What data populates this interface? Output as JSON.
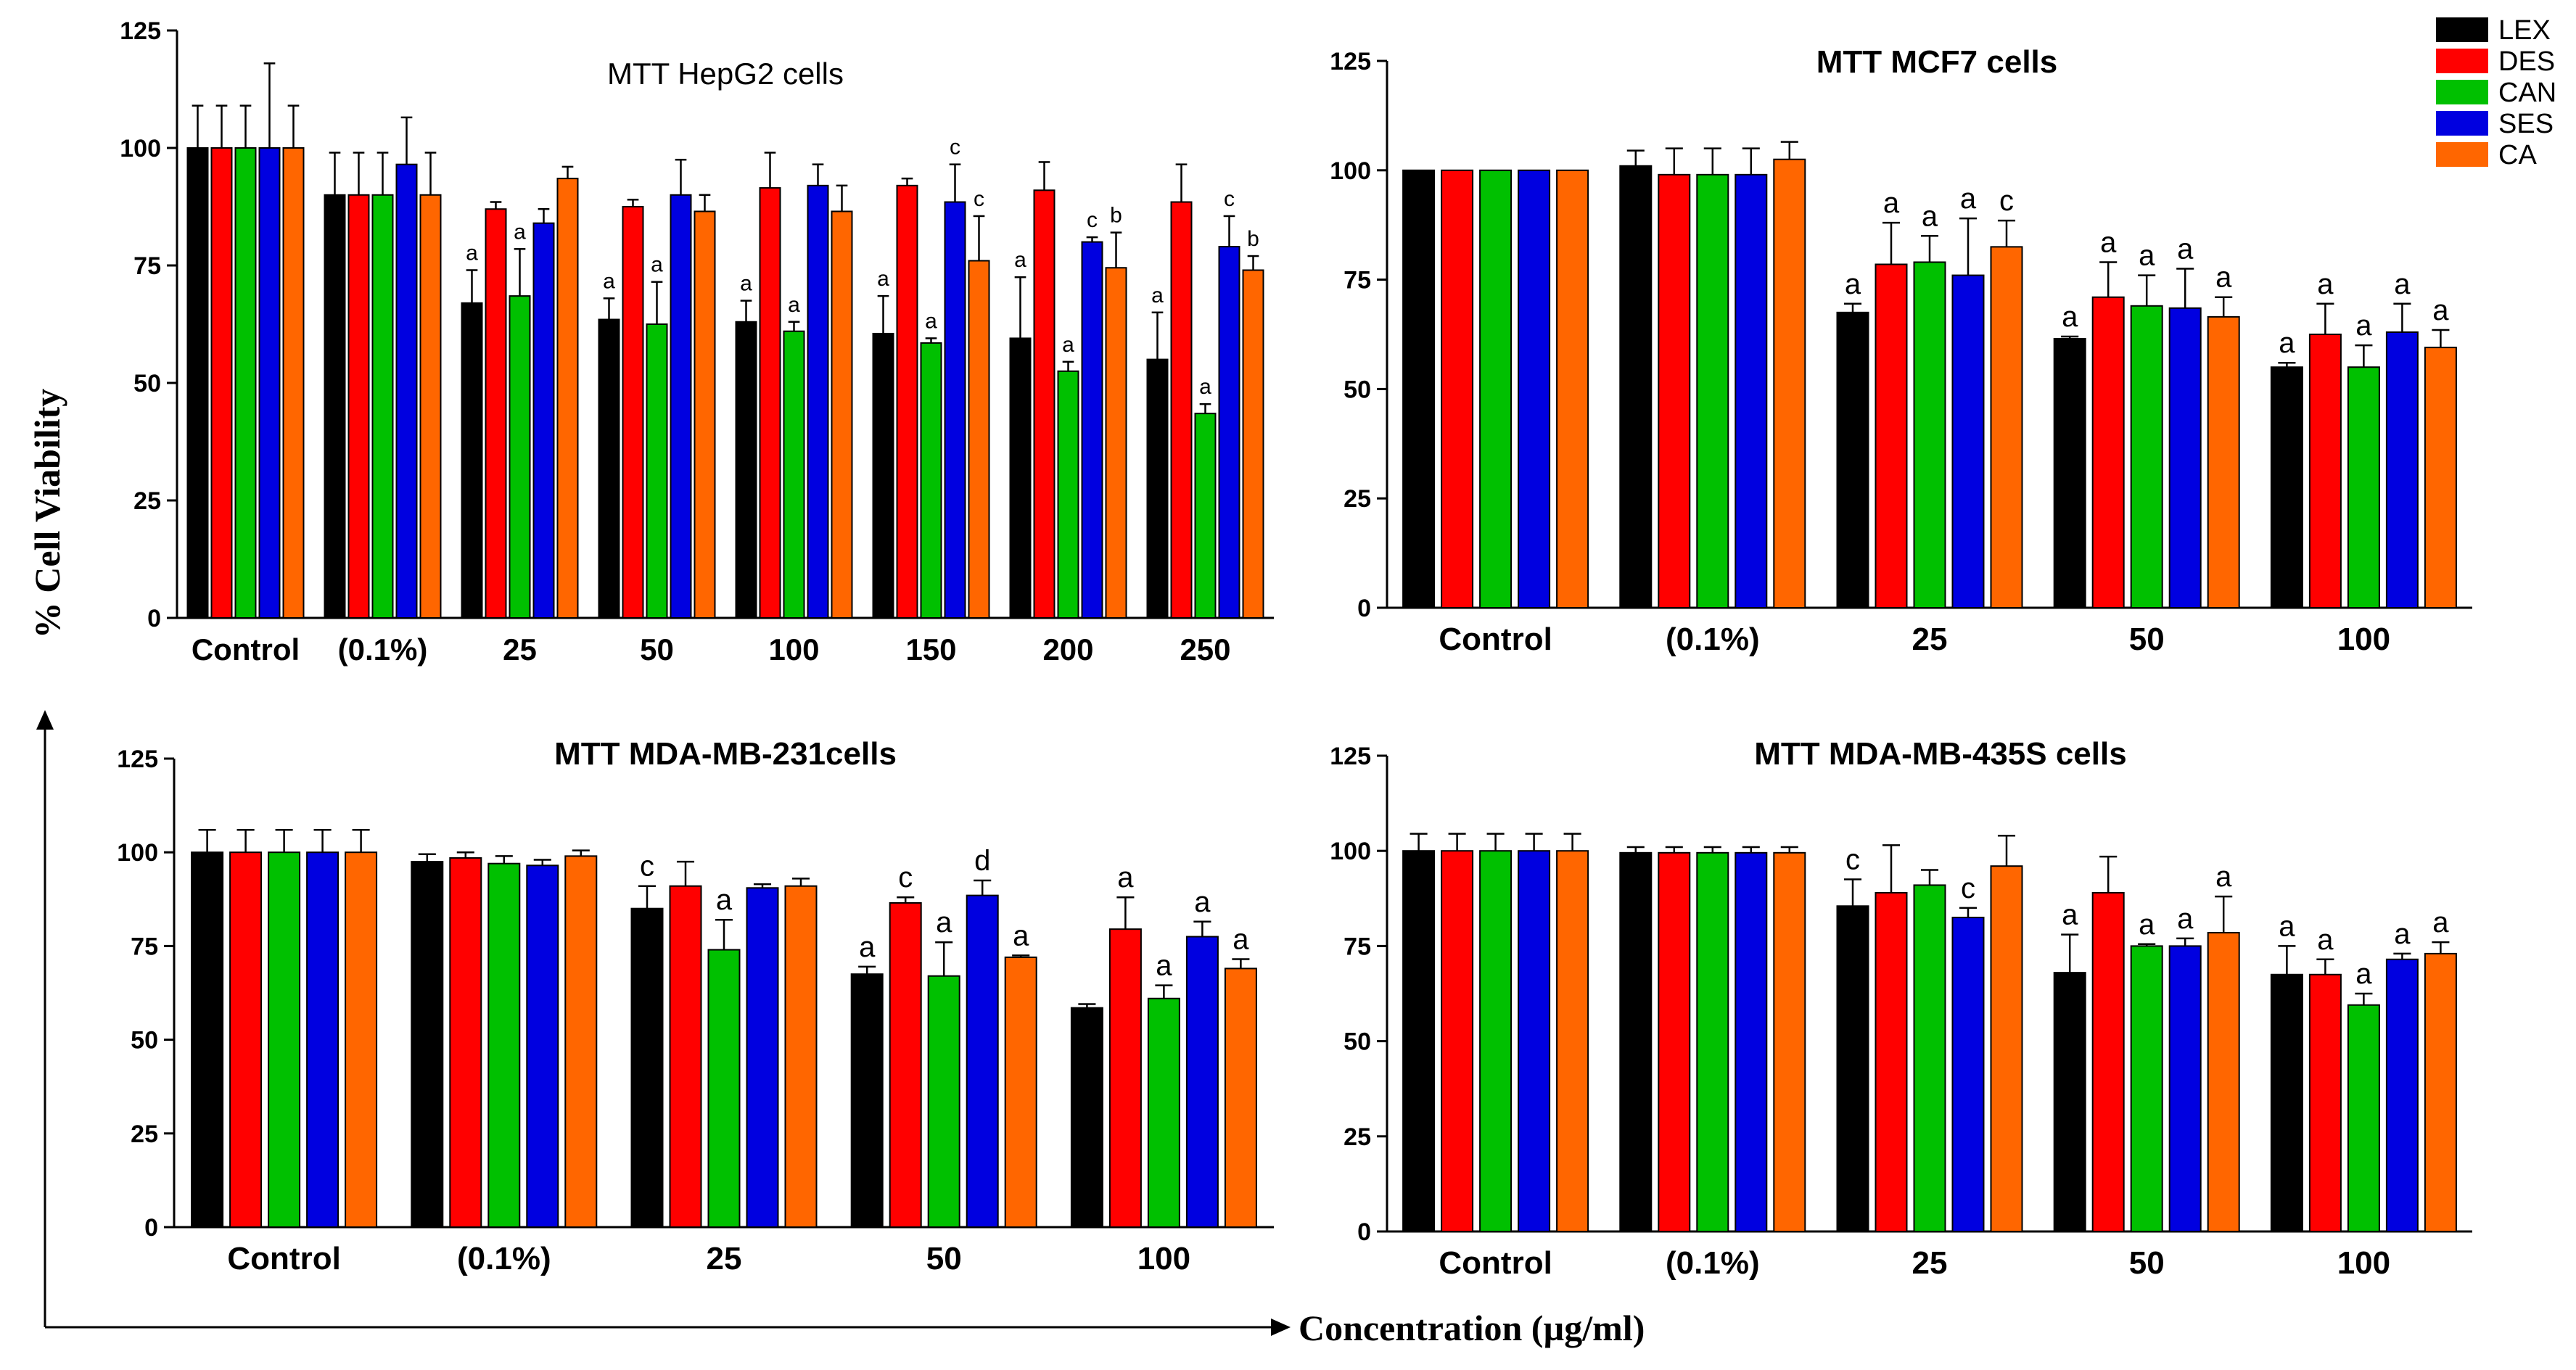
{
  "legend": [
    {
      "name": "LEX",
      "color": "#000000"
    },
    {
      "name": "DES",
      "color": "#ff0000"
    },
    {
      "name": "CAN",
      "color": "#00c000"
    },
    {
      "name": "SES",
      "color": "#0000e0"
    },
    {
      "name": "CA",
      "color": "#ff6600"
    }
  ],
  "ylabel": "% Cell  Viability",
  "xlabel": "Concentration (µg/ml)",
  "chart_data": [
    {
      "type": "bar",
      "title": "MTT HepG2 cells",
      "categories": [
        "Control",
        "(0.1%)",
        "25",
        "50",
        "100",
        "150",
        "200",
        "250"
      ],
      "ylim": [
        0,
        125
      ],
      "yticks": [
        "0",
        "25",
        "50",
        "75",
        "100",
        "125"
      ],
      "series": [
        {
          "name": "LEX",
          "values": [
            100,
            90,
            67,
            63.5,
            63,
            60.5,
            59.5,
            55
          ],
          "errors": [
            9,
            9,
            7,
            4.5,
            4.5,
            8,
            13,
            10
          ],
          "labels": [
            "",
            "",
            "a",
            "a",
            "a",
            "a",
            "a",
            "a"
          ]
        },
        {
          "name": "DES",
          "values": [
            100,
            90,
            87,
            87.5,
            91.5,
            92,
            91,
            88.5
          ],
          "errors": [
            9,
            9,
            1.5,
            1.5,
            7.5,
            1.5,
            6,
            8
          ],
          "labels": [
            "",
            "",
            "",
            "",
            "",
            "",
            "",
            ""
          ]
        },
        {
          "name": "CAN",
          "values": [
            100,
            90,
            68.5,
            62.5,
            61,
            58.5,
            52.5,
            43.5
          ],
          "errors": [
            9,
            9,
            10,
            9,
            2,
            1,
            2,
            2
          ],
          "labels": [
            "",
            "",
            "a",
            "a",
            "a",
            "a",
            "a",
            "a"
          ]
        },
        {
          "name": "SES",
          "values": [
            100,
            96.5,
            84,
            90,
            92,
            88.5,
            80,
            79
          ],
          "errors": [
            18,
            10,
            3,
            7.5,
            4.5,
            8,
            1,
            6.5
          ],
          "labels": [
            "",
            "",
            "",
            "",
            "",
            "c",
            "c",
            "c"
          ]
        },
        {
          "name": "CA",
          "values": [
            100,
            90,
            93.5,
            86.5,
            86.5,
            76,
            74.5,
            74
          ],
          "errors": [
            9,
            9,
            2.5,
            3.5,
            5.5,
            9.5,
            7.5,
            3
          ],
          "labels": [
            "",
            "",
            "",
            "",
            "",
            "c",
            "b",
            "b"
          ]
        }
      ]
    },
    {
      "type": "bar",
      "title": "MTT MCF7 cells",
      "categories": [
        "Control",
        "(0.1%)",
        "25",
        "50",
        "100"
      ],
      "ylim": [
        0,
        125
      ],
      "yticks": [
        "0",
        "25",
        "50",
        "75",
        "100",
        "125"
      ],
      "series": [
        {
          "name": "LEX",
          "values": [
            100,
            101,
            67.5,
            61.5,
            55
          ],
          "errors": [
            0,
            3.5,
            2,
            0.5,
            1
          ],
          "labels": [
            "",
            "",
            "a",
            "a",
            "a"
          ]
        },
        {
          "name": "DES",
          "values": [
            100,
            99,
            78.5,
            71,
            62.5
          ],
          "errors": [
            0,
            6,
            9.5,
            8,
            7
          ],
          "labels": [
            "",
            "",
            "a",
            "a",
            "a"
          ]
        },
        {
          "name": "CAN",
          "values": [
            100,
            99,
            79,
            69,
            55
          ],
          "errors": [
            0,
            6,
            6,
            7,
            5
          ],
          "labels": [
            "",
            "",
            "a",
            "a",
            "a"
          ]
        },
        {
          "name": "SES",
          "values": [
            100,
            99,
            76,
            68.5,
            63
          ],
          "errors": [
            0,
            6,
            13,
            9,
            6.5
          ],
          "labels": [
            "",
            "",
            "a",
            "a",
            "a"
          ]
        },
        {
          "name": "CA",
          "values": [
            100,
            102.5,
            82.5,
            66.5,
            59.5
          ],
          "errors": [
            0,
            4,
            6,
            4.5,
            4
          ],
          "labels": [
            "",
            "",
            "c",
            "a",
            "a"
          ]
        }
      ]
    },
    {
      "type": "bar",
      "title": "MTT MDA-MB-231cells",
      "categories": [
        "Control",
        "(0.1%)",
        "25",
        "50",
        "100"
      ],
      "ylim": [
        0,
        125
      ],
      "yticks": [
        "0",
        "25",
        "50",
        "75",
        "100",
        "125"
      ],
      "series": [
        {
          "name": "LEX",
          "values": [
            100,
            97.5,
            85,
            67.5,
            58.5
          ],
          "errors": [
            6,
            2,
            6,
            2,
            1
          ],
          "labels": [
            "",
            "",
            "c",
            "a",
            ""
          ]
        },
        {
          "name": "DES",
          "values": [
            100,
            98.5,
            91,
            86.5,
            79.5
          ],
          "errors": [
            6,
            1.5,
            6.5,
            1.5,
            8.5
          ],
          "labels": [
            "",
            "",
            "",
            "c",
            "a"
          ]
        },
        {
          "name": "CAN",
          "values": [
            100,
            97,
            74,
            67,
            61
          ],
          "errors": [
            6,
            2,
            8,
            9,
            3.5
          ],
          "labels": [
            "",
            "",
            "a",
            "a",
            "a"
          ]
        },
        {
          "name": "SES",
          "values": [
            100,
            96.5,
            90.5,
            88.5,
            77.5
          ],
          "errors": [
            6,
            1.5,
            1,
            4,
            4
          ],
          "labels": [
            "",
            "",
            "",
            "d",
            "a"
          ]
        },
        {
          "name": "CA",
          "values": [
            100,
            99,
            91,
            72,
            69
          ],
          "errors": [
            6,
            1.5,
            2,
            0.5,
            2.5
          ],
          "labels": [
            "",
            "",
            "",
            "a",
            "a"
          ]
        }
      ]
    },
    {
      "type": "bar",
      "title": "MTT MDA-MB-435S cells",
      "categories": [
        "Control",
        "(0.1%)",
        "25",
        "50",
        "100"
      ],
      "ylim": [
        0,
        125
      ],
      "yticks": [
        "0",
        "25",
        "50",
        "75",
        "100",
        "125"
      ],
      "series": [
        {
          "name": "LEX",
          "values": [
            100,
            99.5,
            85.5,
            68,
            67.5
          ],
          "errors": [
            4.5,
            1.5,
            7,
            10,
            7.5
          ],
          "labels": [
            "",
            "",
            "c",
            "a",
            "a"
          ]
        },
        {
          "name": "DES",
          "values": [
            100,
            99.5,
            89,
            89,
            67.5
          ],
          "errors": [
            4.5,
            1.5,
            12.5,
            9.5,
            4
          ],
          "labels": [
            "",
            "",
            "",
            "",
            "a"
          ]
        },
        {
          "name": "CAN",
          "values": [
            100,
            99.5,
            91,
            75,
            59.5
          ],
          "errors": [
            4.5,
            1.5,
            4,
            0.5,
            3
          ],
          "labels": [
            "",
            "",
            "",
            "a",
            "a"
          ]
        },
        {
          "name": "SES",
          "values": [
            100,
            99.5,
            82.5,
            75,
            71.5
          ],
          "errors": [
            4.5,
            1.5,
            2.5,
            2,
            1.5
          ],
          "labels": [
            "",
            "",
            "c",
            "a",
            "a"
          ]
        },
        {
          "name": "CA",
          "values": [
            100,
            99.5,
            96,
            78.5,
            73
          ],
          "errors": [
            4.5,
            1.5,
            8,
            9.5,
            3
          ],
          "labels": [
            "",
            "",
            "",
            "a",
            "a"
          ]
        }
      ]
    }
  ]
}
